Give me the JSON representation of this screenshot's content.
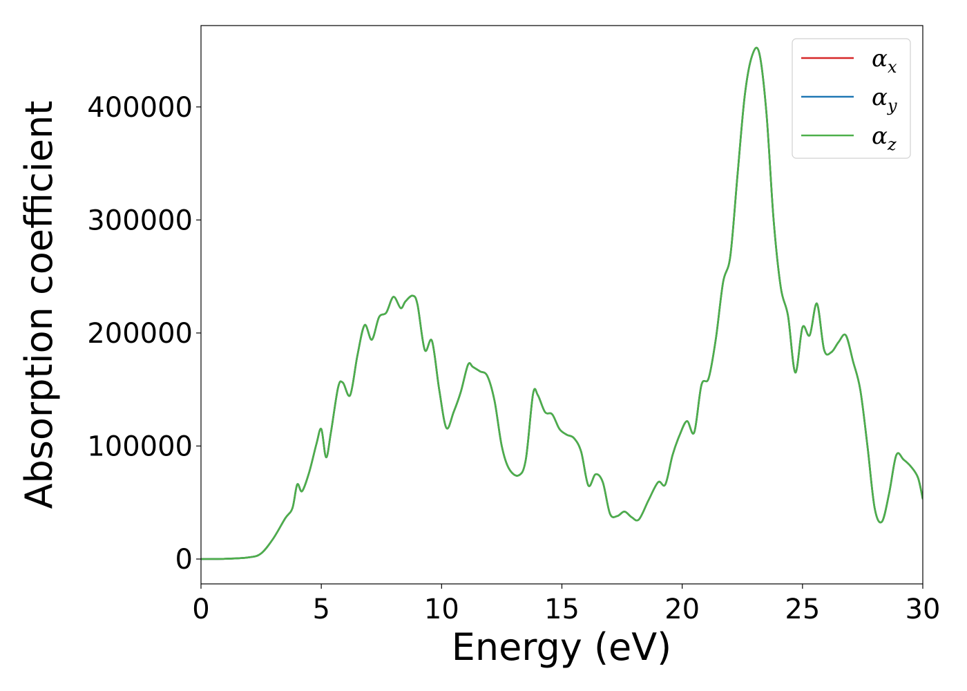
{
  "chart_data": {
    "type": "line",
    "title": "",
    "xlabel": "Energy (eV)",
    "ylabel": "Absorption coefficient",
    "xlim": [
      0,
      30
    ],
    "ylim": [
      -22000,
      472000
    ],
    "xticks": [
      0,
      5,
      10,
      15,
      20,
      25,
      30
    ],
    "yticks": [
      0,
      100000,
      200000,
      300000,
      400000
    ],
    "grid": false,
    "legend_position": "top-right",
    "legend": [
      {
        "symbol": "α",
        "sub": "x",
        "color": "#d62728"
      },
      {
        "symbol": "α",
        "sub": "y",
        "color": "#1f77b4"
      },
      {
        "symbol": "α",
        "sub": "z",
        "color": "#4daf4a"
      }
    ],
    "x": [
      0,
      1,
      2,
      2.5,
      3,
      3.5,
      3.8,
      4.0,
      4.2,
      4.5,
      4.8,
      5.0,
      5.2,
      5.4,
      5.7,
      5.9,
      6.2,
      6.5,
      6.8,
      7.1,
      7.4,
      7.7,
      8.0,
      8.3,
      8.5,
      8.8,
      9.0,
      9.3,
      9.6,
      9.9,
      10.2,
      10.5,
      10.8,
      11.1,
      11.3,
      11.6,
      11.9,
      12.2,
      12.5,
      12.8,
      13.2,
      13.5,
      13.8,
      14.0,
      14.3,
      14.6,
      14.9,
      15.2,
      15.5,
      15.8,
      16.1,
      16.4,
      16.7,
      17.0,
      17.3,
      17.6,
      17.9,
      18.2,
      18.6,
      19.0,
      19.3,
      19.6,
      19.9,
      20.2,
      20.5,
      20.8,
      21.1,
      21.4,
      21.7,
      22.0,
      22.3,
      22.6,
      22.9,
      23.2,
      23.5,
      23.8,
      24.1,
      24.4,
      24.7,
      25.0,
      25.3,
      25.6,
      25.9,
      26.2,
      26.5,
      26.8,
      27.1,
      27.4,
      27.7,
      28.0,
      28.3,
      28.6,
      28.9,
      29.2,
      29.5,
      29.8,
      30
    ],
    "series": [
      {
        "values": [
          0,
          200,
          1500,
          5000,
          18000,
          36000,
          45000,
          66000,
          60000,
          77000,
          102000,
          115000,
          90000,
          112000,
          152000,
          156000,
          145000,
          180000,
          207000,
          194000,
          214000,
          218000,
          232000,
          222000,
          228000,
          233000,
          225000,
          185000,
          193000,
          150000,
          116000,
          130000,
          148000,
          172000,
          170000,
          166000,
          162000,
          140000,
          100000,
          80000,
          74000,
          88000,
          146000,
          145000,
          130000,
          128000,
          115000,
          110000,
          107000,
          95000,
          65000,
          75000,
          68000,
          40000,
          38000,
          42000,
          37000,
          35000,
          52000,
          68000,
          66000,
          92000,
          110000,
          122000,
          112000,
          154000,
          160000,
          195000,
          245000,
          268000,
          340000,
          410000,
          445000,
          448000,
          395000,
          300000,
          240000,
          215000,
          165000,
          205000,
          198000,
          226000,
          185000,
          183000,
          192000,
          198000,
          175000,
          150000,
          100000,
          45000,
          33000,
          58000,
          92000,
          88000,
          82000,
          72000,
          53000
        ]
      },
      {
        "values": [
          0,
          200,
          1500,
          5000,
          18000,
          36000,
          45000,
          66000,
          60000,
          77000,
          102000,
          115000,
          90000,
          112000,
          152000,
          156000,
          145000,
          180000,
          207000,
          194000,
          214000,
          218000,
          232000,
          222000,
          228000,
          233000,
          225000,
          185000,
          193000,
          150000,
          116000,
          130000,
          148000,
          172000,
          170000,
          166000,
          162000,
          140000,
          100000,
          80000,
          74000,
          88000,
          146000,
          145000,
          130000,
          128000,
          115000,
          110000,
          107000,
          95000,
          65000,
          75000,
          68000,
          40000,
          38000,
          42000,
          37000,
          35000,
          52000,
          68000,
          66000,
          92000,
          110000,
          122000,
          112000,
          154000,
          160000,
          195000,
          245000,
          268000,
          340000,
          410000,
          445000,
          448000,
          395000,
          300000,
          240000,
          215000,
          165000,
          205000,
          198000,
          226000,
          185000,
          183000,
          192000,
          198000,
          175000,
          150000,
          100000,
          45000,
          33000,
          58000,
          92000,
          88000,
          82000,
          72000,
          53000
        ]
      },
      {
        "values": [
          0,
          200,
          1500,
          5000,
          18000,
          36000,
          45000,
          66000,
          60000,
          77000,
          102000,
          115000,
          90000,
          112000,
          152000,
          156000,
          145000,
          180000,
          207000,
          194000,
          214000,
          218000,
          232000,
          222000,
          228000,
          233000,
          225000,
          185000,
          193000,
          150000,
          116000,
          130000,
          148000,
          172000,
          170000,
          166000,
          162000,
          140000,
          100000,
          80000,
          74000,
          88000,
          146000,
          145000,
          130000,
          128000,
          115000,
          110000,
          107000,
          95000,
          65000,
          75000,
          68000,
          40000,
          38000,
          42000,
          37000,
          35000,
          52000,
          68000,
          66000,
          92000,
          110000,
          122000,
          112000,
          154000,
          160000,
          195000,
          245000,
          268000,
          340000,
          410000,
          445000,
          448000,
          395000,
          300000,
          240000,
          215000,
          165000,
          205000,
          198000,
          226000,
          185000,
          183000,
          192000,
          198000,
          175000,
          150000,
          100000,
          45000,
          33000,
          58000,
          92000,
          88000,
          82000,
          72000,
          53000
        ]
      }
    ]
  }
}
